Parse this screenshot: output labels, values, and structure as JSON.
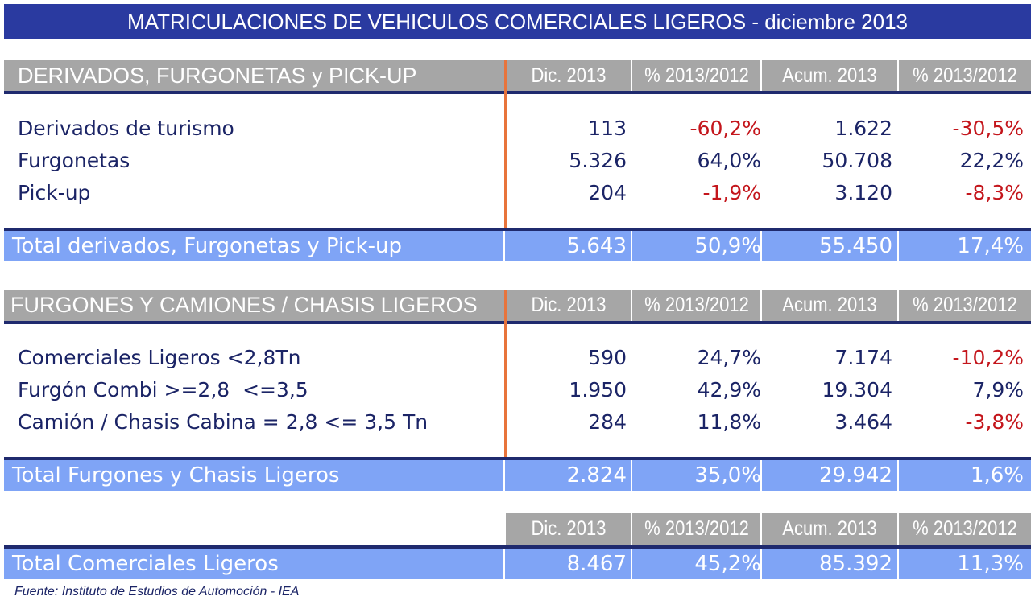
{
  "title": "MATRICULACIONES DE VEHICULOS COMERCIALES LIGEROS - diciembre 2013",
  "columns": [
    "Dic. 2013",
    "% 2013/2012",
    "Acum. 2013",
    "% 2013/2012"
  ],
  "section1": {
    "heading": "DERIVADOS, FURGONETAS y PICK-UP",
    "rows": [
      {
        "label": "Derivados de turismo",
        "dic": "113",
        "pct_dic": "-60,2%",
        "acum": "1.622",
        "pct_acum": "-30,5%"
      },
      {
        "label": "Furgonetas",
        "dic": "5.326",
        "pct_dic": "64,0%",
        "acum": "50.708",
        "pct_acum": "22,2%"
      },
      {
        "label": "Pick-up",
        "dic": "204",
        "pct_dic": "-1,9%",
        "acum": "3.120",
        "pct_acum": "-8,3%"
      }
    ],
    "total": {
      "label": "Total derivados, Furgonetas y Pick-up",
      "dic": "5.643",
      "pct_dic": "50,9%",
      "acum": "55.450",
      "pct_acum": "17,4%"
    }
  },
  "section2": {
    "heading": "FURGONES Y CAMIONES / CHASIS LIGEROS",
    "rows": [
      {
        "label": "Comerciales Ligeros <2,8Tn",
        "dic": "590",
        "pct_dic": "24,7%",
        "acum": "7.174",
        "pct_acum": "-10,2%"
      },
      {
        "label": "Furgón Combi >=2,8  <=3,5",
        "dic": "1.950",
        "pct_dic": "42,9%",
        "acum": "19.304",
        "pct_acum": "7,9%"
      },
      {
        "label": "Camión / Chasis Cabina = 2,8 <= 3,5 Tn",
        "dic": "284",
        "pct_dic": "11,8%",
        "acum": "3.464",
        "pct_acum": "-3,8%"
      }
    ],
    "total": {
      "label": "Total Furgones y Chasis Ligeros",
      "dic": "2.824",
      "pct_dic": "35,0%",
      "acum": "29.942",
      "pct_acum": "1,6%"
    }
  },
  "grand_total": {
    "label": "Total Comerciales Ligeros",
    "dic": "8.467",
    "pct_dic": "45,2%",
    "acum": "85.392",
    "pct_acum": "11,3%"
  },
  "footnote": "Fuente: Instituto de Estudios de Automoción - IEA",
  "colors": {
    "title_bg": "#2a3aa0",
    "header_bg": "#a6a6a6",
    "total_bg": "#7fa4f6",
    "negative": "#c4161c",
    "divider": "#e8743b"
  }
}
